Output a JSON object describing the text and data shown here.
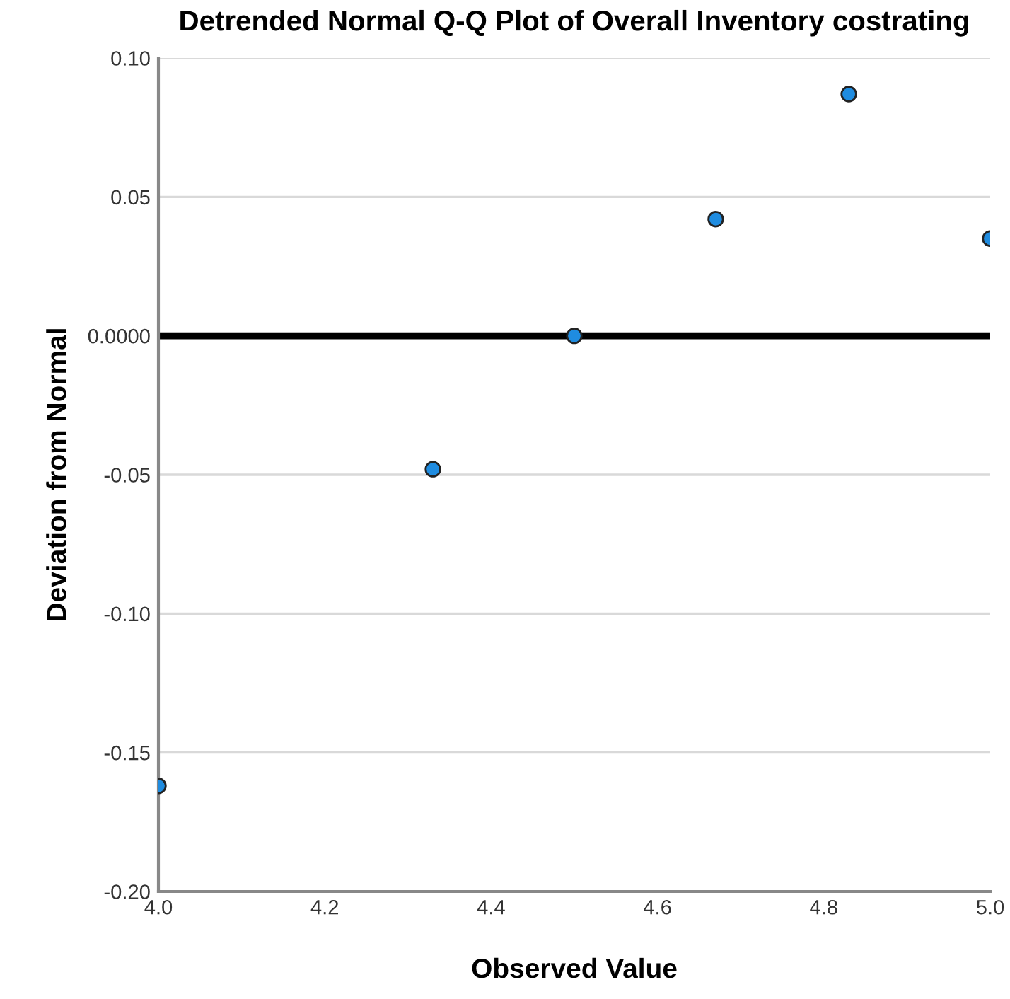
{
  "chart_data": {
    "type": "scatter",
    "title": "Detrended Normal Q-Q Plot of Overall Inventory costrating",
    "xlabel": "Observed Value",
    "ylabel": "Deviation from Normal",
    "x": [
      4.0,
      4.33,
      4.5,
      4.67,
      4.83,
      5.0
    ],
    "series": [
      {
        "color": "#1f8ce0",
        "values": [
          -0.162,
          -0.048,
          0.0,
          0.042,
          0.087,
          0.035
        ]
      }
    ],
    "xlim": [
      4.0,
      5.0
    ],
    "xticks": [
      {
        "value": 4.0,
        "label": "4.0"
      },
      4.2,
      4.4,
      4.6,
      4.8,
      {
        "value": 5.0,
        "label": "5.0"
      }
    ],
    "ylim": [
      -0.2,
      0.1
    ],
    "yticks": [
      {
        "value": -0.2,
        "label": "-0.20"
      },
      -0.15,
      {
        "value": -0.1,
        "label": "-0.10"
      },
      -0.05,
      {
        "value": 0,
        "label": "0.0000"
      },
      0.05,
      {
        "value": 0.1,
        "label": "0.10"
      }
    ],
    "ref_lines": [
      {
        "axis": "y",
        "value": 0,
        "color": "#000000"
      }
    ],
    "grid": "y",
    "marker": "circle"
  }
}
